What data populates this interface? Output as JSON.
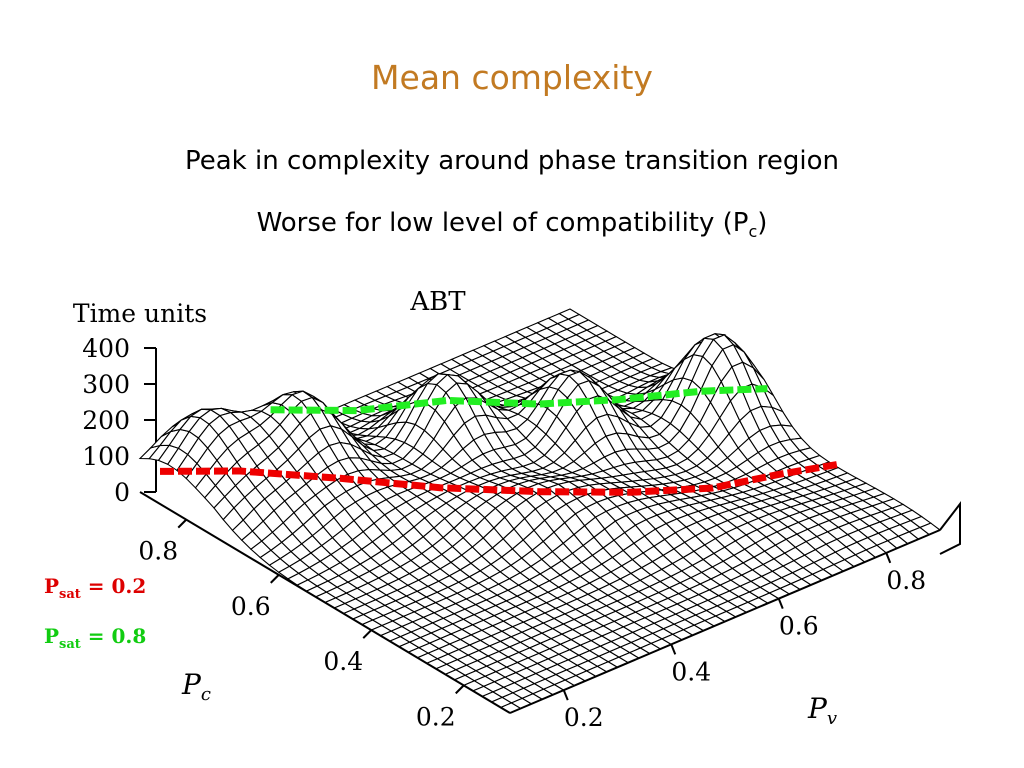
{
  "slide": {
    "title": "Mean complexity",
    "bullet1": "Peak in complexity around phase transition region",
    "bullet2_text": "Worse for low level of compatibility (P",
    "bullet2_sub": "c",
    "bullet2_end": ")"
  },
  "legend": {
    "red": {
      "label": "P",
      "sub": "sat",
      "value": " = 0.2",
      "color": "#dd0000"
    },
    "green": {
      "label": "P",
      "sub": "sat",
      "value": " = 0.8",
      "color": "#11cc11"
    }
  },
  "chart_data": {
    "type": "surface",
    "title": "ABT",
    "zlabel": "Time units",
    "z_ticks": [
      "400",
      "300",
      "200",
      "100",
      "0"
    ],
    "z_tick_values": [
      400,
      300,
      200,
      100,
      0
    ],
    "xlabel": "Pv",
    "x_ticks": [
      "0.2",
      "0.4",
      "0.6",
      "0.8"
    ],
    "x_tick_values": [
      0.2,
      0.4,
      0.6,
      0.8
    ],
    "ylabel": "Pc",
    "y_ticks": [
      "0.8",
      "0.6",
      "0.4",
      "0.2"
    ],
    "y_tick_values": [
      0.8,
      0.6,
      0.4,
      0.2
    ],
    "xlim": [
      0.1,
      0.9
    ],
    "ylim": [
      0.1,
      0.9
    ],
    "zlim": [
      0,
      400
    ],
    "surface_peaks": [
      {
        "pv": 0.85,
        "pc": 0.52,
        "z": 250
      },
      {
        "pv": 0.5,
        "pc": 0.7,
        "z": 220
      },
      {
        "pv": 0.3,
        "pc": 0.78,
        "z": 200
      },
      {
        "pv": 0.65,
        "pc": 0.6,
        "z": 210
      },
      {
        "pv": 0.18,
        "pc": 0.85,
        "z": 150
      }
    ],
    "series": [
      {
        "name": "Psat = 0.2",
        "color": "#ee0000",
        "pv": [
          0.12,
          0.2,
          0.3,
          0.4,
          0.5,
          0.6,
          0.7,
          0.8,
          0.88
        ],
        "pc": [
          0.88,
          0.8,
          0.7,
          0.6,
          0.5,
          0.42,
          0.36,
          0.33,
          0.3
        ],
        "z": [
          40,
          40,
          40,
          40,
          40,
          40,
          40,
          40,
          40
        ]
      },
      {
        "name": "Psat = 0.8",
        "color": "#22ee22",
        "pv": [
          0.3,
          0.4,
          0.5,
          0.6,
          0.7,
          0.8,
          0.88
        ],
        "pc": [
          0.85,
          0.78,
          0.7,
          0.62,
          0.56,
          0.5,
          0.45
        ],
        "z": [
          120,
          120,
          120,
          120,
          120,
          120,
          120
        ]
      }
    ]
  }
}
